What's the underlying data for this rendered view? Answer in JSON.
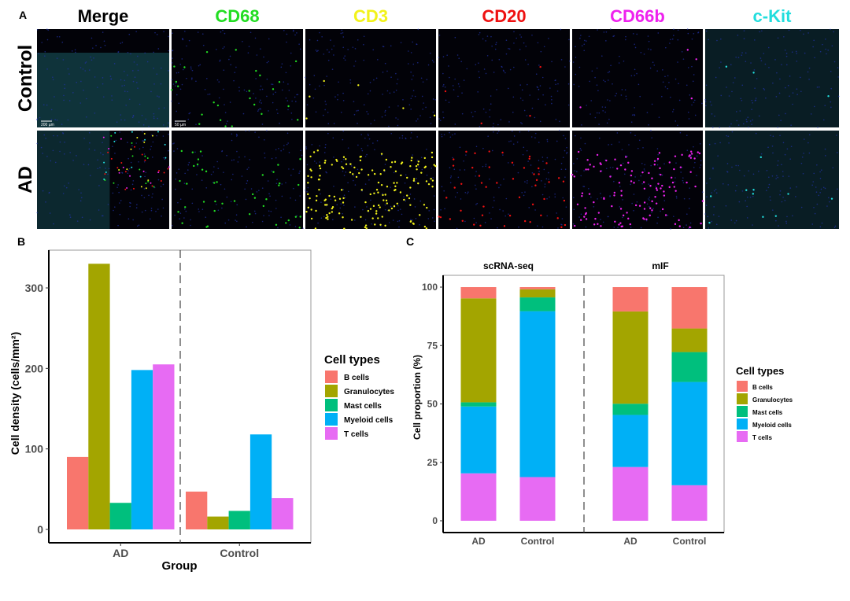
{
  "panel_a": {
    "label": "A",
    "columns": [
      {
        "name": "Merge",
        "color": "#000000"
      },
      {
        "name": "CD68",
        "color": "#22dd22"
      },
      {
        "name": "CD3",
        "color": "#f2f21a"
      },
      {
        "name": "CD20",
        "color": "#ee1111"
      },
      {
        "name": "CD66b",
        "color": "#ee22ee"
      },
      {
        "name": "c-Kit",
        "color": "#22dddd"
      }
    ],
    "rows": [
      "Control",
      "AD"
    ],
    "scale_bars": [
      "200 µm",
      "50 µm"
    ]
  },
  "chart_data": [
    {
      "panel_label": "B",
      "type": "bar",
      "categories": [
        "AD",
        "Control"
      ],
      "xlabel": "Group",
      "ylabel": "Cell density (cells/mm²)",
      "ylim": [
        -15,
        350
      ],
      "yticks": [
        0,
        100,
        200,
        300
      ],
      "grid": false,
      "legend_title": "Cell types",
      "legend_position": "right",
      "series": [
        {
          "name": "B cells",
          "color": "#F8766D",
          "values": [
            90,
            47
          ]
        },
        {
          "name": "Granulocytes",
          "color": "#A3A500",
          "values": [
            330,
            16
          ]
        },
        {
          "name": "Mast cells",
          "color": "#00BF7D",
          "values": [
            33,
            23
          ]
        },
        {
          "name": "Myeloid cells",
          "color": "#00B0F6",
          "values": [
            198,
            118
          ]
        },
        {
          "name": "T cells",
          "color": "#E76BF3",
          "values": [
            205,
            39
          ]
        }
      ]
    },
    {
      "panel_label": "C",
      "type": "bar",
      "stacked": true,
      "facets": [
        "scRNA-seq",
        "mIF"
      ],
      "categories": [
        "AD",
        "Control"
      ],
      "ylabel": "Cell proportion (%)",
      "ylim": [
        -5,
        105
      ],
      "yticks": [
        0,
        25,
        50,
        75,
        100
      ],
      "grid": false,
      "legend_title": "Cell types",
      "legend_position": "right",
      "series": [
        {
          "name": "T cells",
          "color": "#E76BF3",
          "values": {
            "scRNA-seq": [
              20.3,
              18.7
            ],
            "mIF": [
              23.0,
              15.2
            ]
          }
        },
        {
          "name": "Myeloid cells",
          "color": "#00B0F6",
          "values": {
            "scRNA-seq": [
              28.6,
              71.0
            ],
            "mIF": [
              22.3,
              44.2
            ]
          }
        },
        {
          "name": "Mast cells",
          "color": "#00BF7D",
          "values": {
            "scRNA-seq": [
              1.8,
              5.9
            ],
            "mIF": [
              4.8,
              12.8
            ]
          }
        },
        {
          "name": "Granulocytes",
          "color": "#A3A500",
          "values": {
            "scRNA-seq": [
              44.5,
              3.5
            ],
            "mIF": [
              39.5,
              10.1
            ]
          }
        },
        {
          "name": "B cells",
          "color": "#F8766D",
          "values": {
            "scRNA-seq": [
              4.8,
              0.9
            ],
            "mIF": [
              10.4,
              17.7
            ]
          }
        }
      ],
      "legend_order": [
        "B cells",
        "Granulocytes",
        "Mast cells",
        "Myeloid cells",
        "T cells"
      ]
    }
  ]
}
